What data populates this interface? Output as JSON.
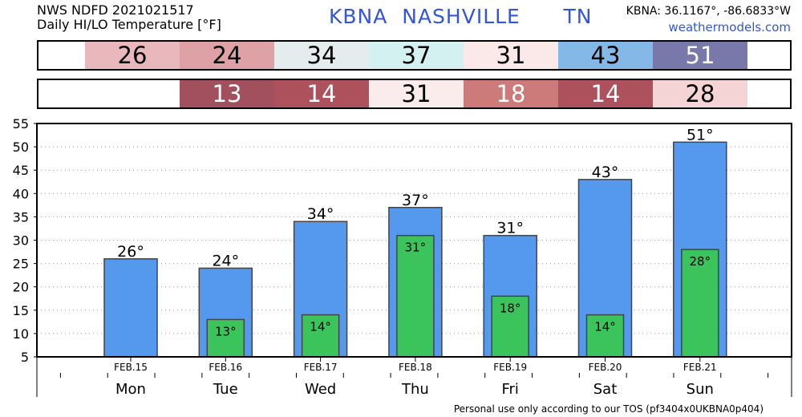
{
  "header": {
    "line1": "NWS NDFD 2021021517",
    "line2": "Daily HI/LO Temperature [°F]",
    "station": "KBNA  NASHVILLE      TN",
    "coords": "KBNA: 36.1167°, -86.6833°W",
    "site": "weathermodels.com"
  },
  "hi_strip": [
    {
      "text": "26",
      "color": "#e8b8bc",
      "fg": "#000000"
    },
    {
      "text": "24",
      "color": "#dea2a6",
      "fg": "#000000"
    },
    {
      "text": "34",
      "color": "#e4ecee",
      "fg": "#000000"
    },
    {
      "text": "37",
      "color": "#d2f1f0",
      "fg": "#000000"
    },
    {
      "text": "31",
      "color": "#fbe9ea",
      "fg": "#000000"
    },
    {
      "text": "43",
      "color": "#84b8e6",
      "fg": "#000000"
    },
    {
      "text": "51",
      "color": "#7878aa",
      "fg": "#ffffff"
    }
  ],
  "lo_strip": [
    {
      "text": "",
      "color": "#ffffff",
      "fg": "#000000"
    },
    {
      "text": "13",
      "color": "#a2505e",
      "fg": "#ffffff"
    },
    {
      "text": "14",
      "color": "#ad525c",
      "fg": "#ffffff"
    },
    {
      "text": "31",
      "color": "#faecec",
      "fg": "#000000"
    },
    {
      "text": "18",
      "color": "#cc7a7a",
      "fg": "#ffffff"
    },
    {
      "text": "14",
      "color": "#ad525c",
      "fg": "#ffffff"
    },
    {
      "text": "28",
      "color": "#f4d4d5",
      "fg": "#000000"
    }
  ],
  "chart_data": {
    "type": "bar",
    "categories": [
      "Mon",
      "Tue",
      "Wed",
      "Thu",
      "Fri",
      "Sat",
      "Sun"
    ],
    "dates": [
      "FEB.15",
      "FEB.16",
      "FEB.17",
      "FEB.18",
      "FEB.19",
      "FEB.20",
      "FEB.21"
    ],
    "series": [
      {
        "values": [
          26,
          24,
          34,
          37,
          31,
          43,
          51
        ],
        "color": "#5599ee",
        "labels": [
          "26°",
          "24°",
          "34°",
          "37°",
          "31°",
          "43°",
          "51°"
        ]
      },
      {
        "values": [
          null,
          13,
          14,
          31,
          18,
          14,
          28
        ],
        "color": "#3cc45c",
        "labels": [
          "",
          "13°",
          "14°",
          "31°",
          "18°",
          "14°",
          "28°"
        ]
      }
    ],
    "ylim": [
      5,
      55
    ],
    "yticks": [
      5,
      10,
      15,
      20,
      25,
      30,
      35,
      40,
      45,
      50,
      55
    ],
    "grid": true
  },
  "footer": "Personal use only according to our TOS (pf3404x0UKBNA0p404)"
}
